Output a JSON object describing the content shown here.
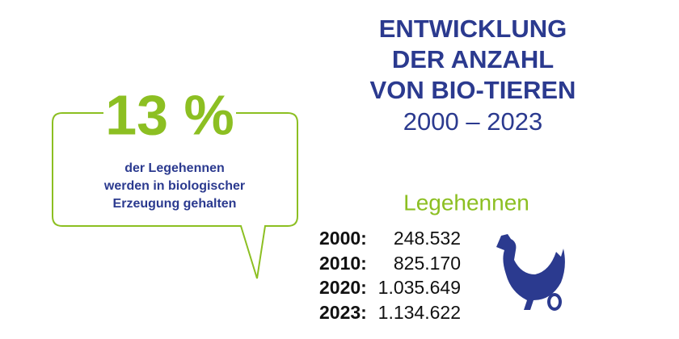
{
  "title": {
    "lines": [
      "ENTWICKLUNG",
      "DER ANZAHL",
      "VON BIO-TIEREN"
    ],
    "period": "2000 – 2023"
  },
  "callout": {
    "figure": "13 %",
    "lines": [
      "der Legehennen",
      "werden in biologischer",
      "Erzeugung gehalten"
    ]
  },
  "table": {
    "heading": "Legehennen",
    "rows": [
      [
        "2000:",
        "248.532"
      ],
      [
        "2010:",
        "825.170"
      ],
      [
        "2020:",
        "1.035.649"
      ],
      [
        "2023:",
        "1.134.622"
      ]
    ]
  }
}
